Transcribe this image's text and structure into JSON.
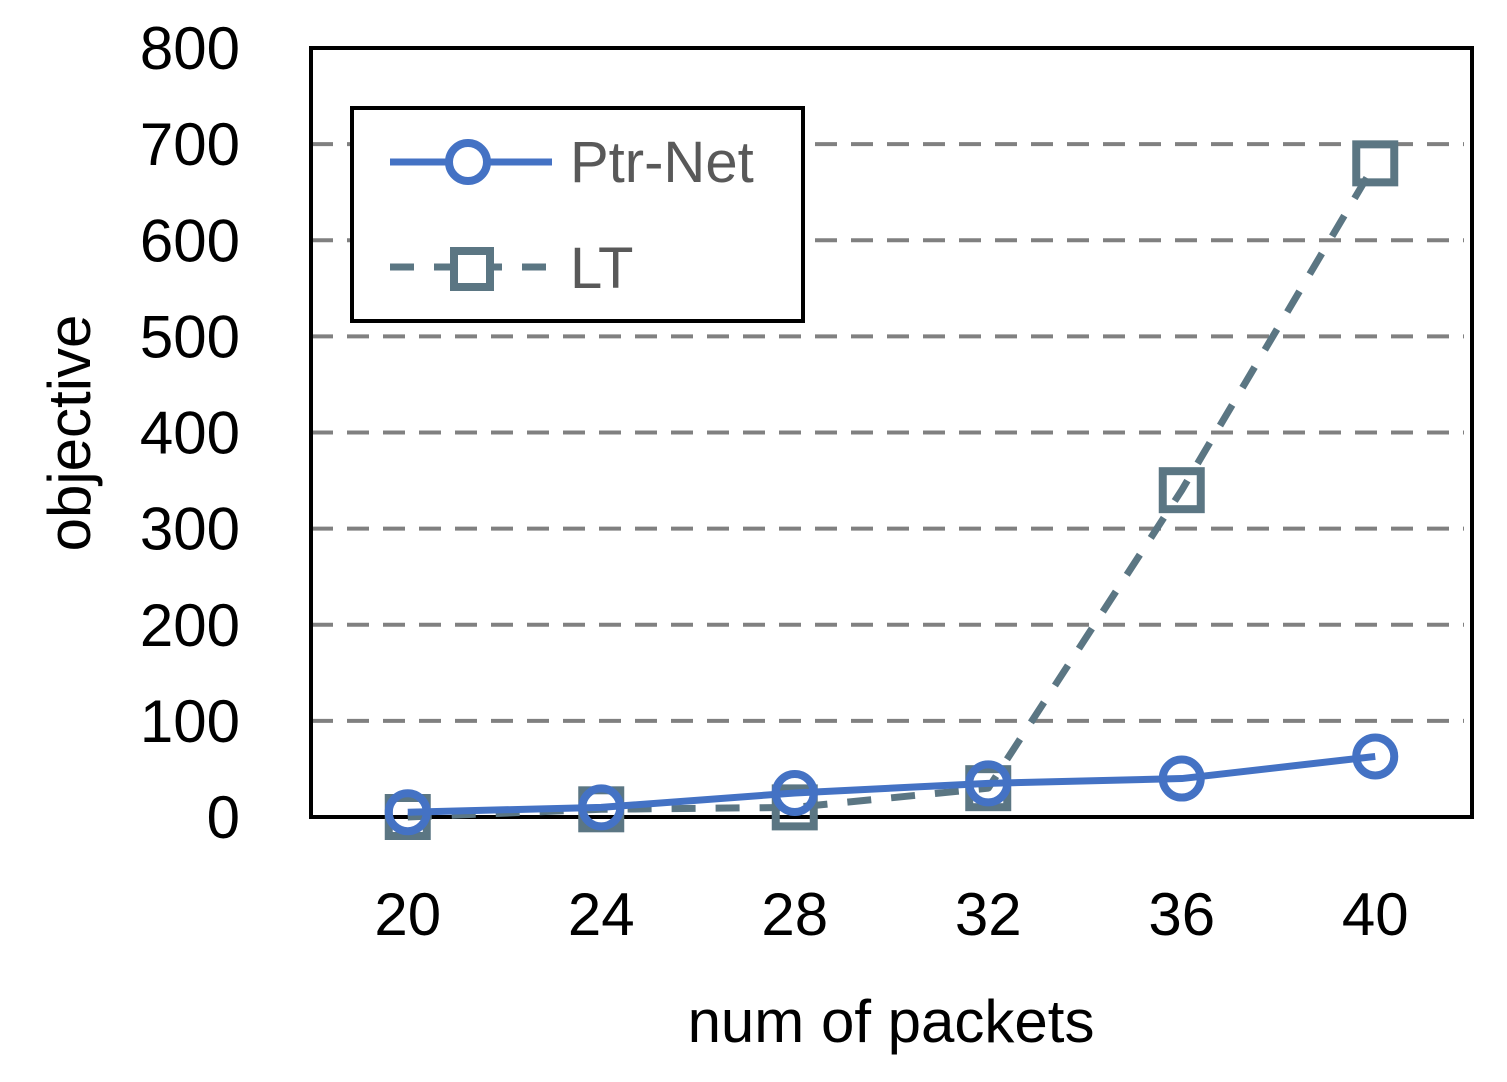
{
  "chart_data": {
    "type": "line",
    "xlabel": "num of packets",
    "ylabel": "objective",
    "categories": [
      "20",
      "24",
      "28",
      "32",
      "36",
      "40"
    ],
    "ylim": [
      0,
      800
    ],
    "yticks": [
      0,
      100,
      200,
      300,
      400,
      500,
      600,
      700,
      800
    ],
    "grid": "horizontal dashed",
    "legend_position": "top-left",
    "series": [
      {
        "name": "Ptr-Net",
        "values": [
          5,
          10,
          25,
          35,
          40,
          63
        ],
        "color": "#4472C4",
        "marker": "circle",
        "line": "solid"
      },
      {
        "name": "LT",
        "values": [
          0,
          8,
          10,
          30,
          340,
          680
        ],
        "color": "#5B7683",
        "marker": "square",
        "line": "dashed"
      }
    ]
  }
}
